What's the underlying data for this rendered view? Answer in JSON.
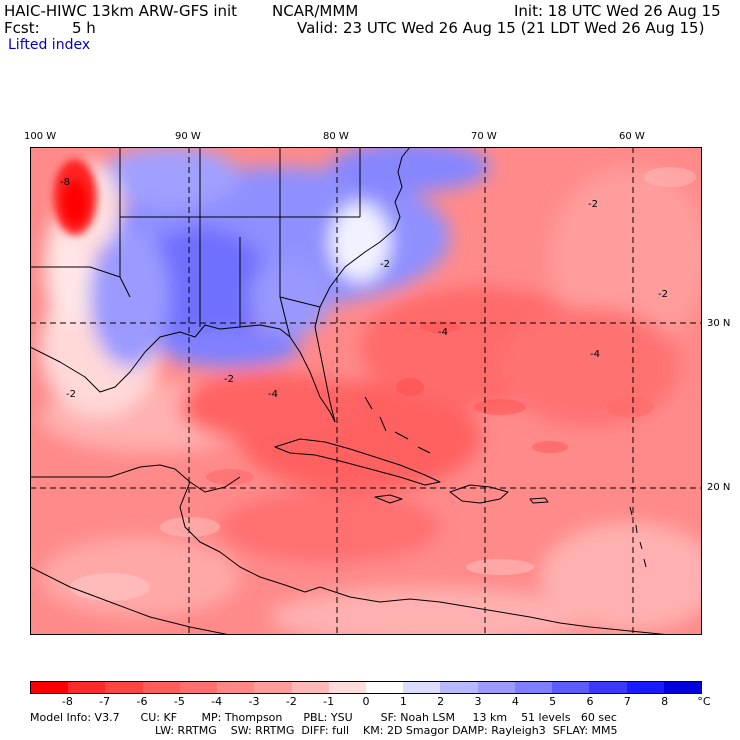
{
  "header": {
    "model_title": "HAIC-HIWC 13km ARW-GFS init",
    "org": "NCAR/MMM",
    "init": "Init: 18 UTC Wed 26 Aug 15",
    "fcst_label": "Fcst:",
    "fcst_value": "5 h",
    "valid": "Valid: 23 UTC Wed 26 Aug 15 (21 LDT Wed 26 Aug 15)",
    "field": "Lifted index"
  },
  "map": {
    "lon_labels": [
      "100 W",
      "90 W",
      "80 W",
      "70 W",
      "60 W"
    ],
    "lat_labels": [
      "30 N",
      "20 N"
    ],
    "contour_labels": [
      "-8",
      "-2",
      "-4",
      "-4",
      "-2",
      "-2",
      "-4",
      "-2",
      "-2"
    ],
    "colors": {
      "border": "#000000",
      "gridline": "#000000"
    }
  },
  "colorbar": {
    "labels": [
      "-8",
      "-7",
      "-6",
      "-5",
      "-4",
      "-3",
      "-2",
      "-1",
      "0",
      "1",
      "2",
      "3",
      "4",
      "5",
      "6",
      "7",
      "8"
    ],
    "unit": "°C",
    "colors": [
      "#ff0000",
      "#ff2a2a",
      "#ff4444",
      "#ff5c5c",
      "#ff7070",
      "#ff8686",
      "#ff9c9c",
      "#ffb8b8",
      "#ffdcdc",
      "#ffffff",
      "#dcdcff",
      "#b8b8ff",
      "#9c9cff",
      "#7e7eff",
      "#5c5cff",
      "#3a3aff",
      "#1a1aff",
      "#0000dd"
    ]
  },
  "footer": {
    "line1": "Model Info: V3.7      CU: KF       MP: Thompson      PBL: YSU        SF: Noah LSM     13 km    51 levels   60 sec",
    "line2": "LW: RRTMG    SW: RRTMG  DIFF: full    KM: 2D Smagor DAMP: Rayleigh3  SFLAY: MM5"
  }
}
